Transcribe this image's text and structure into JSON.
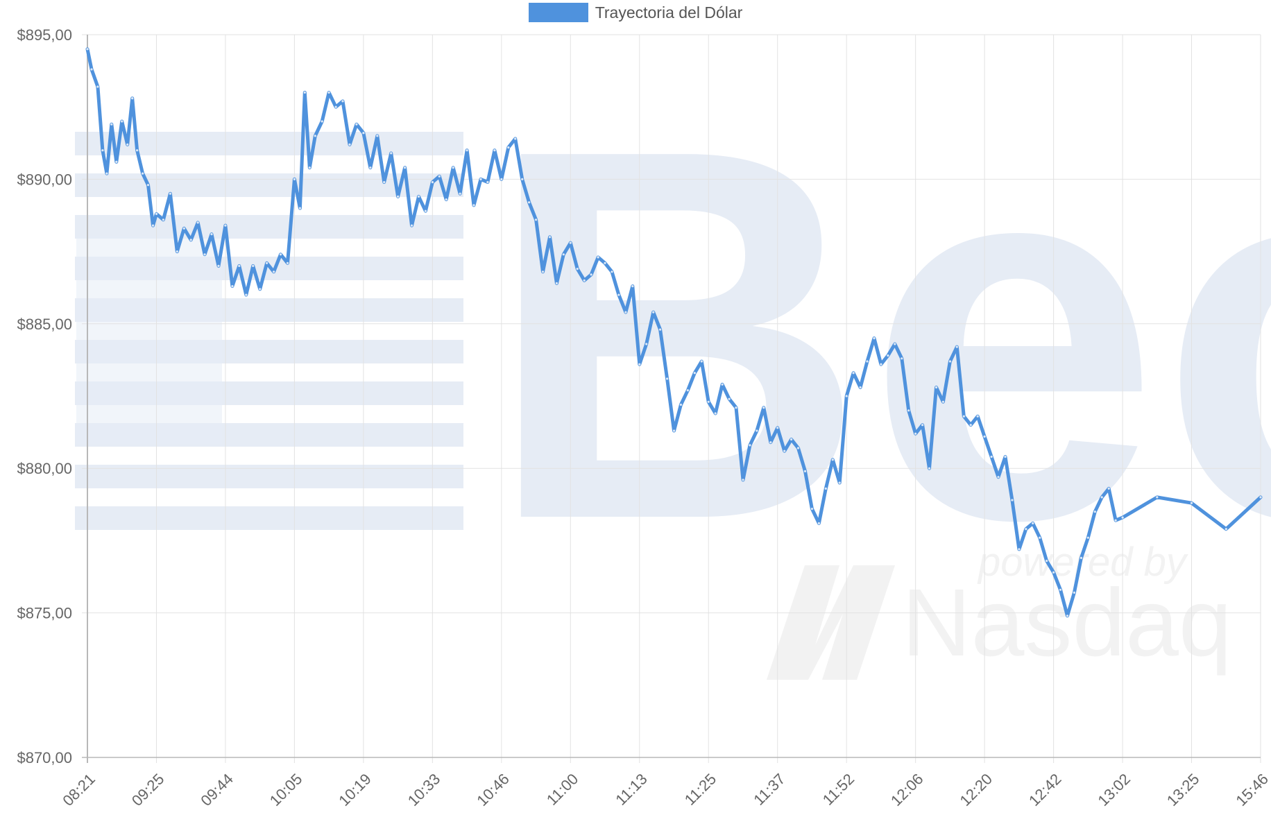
{
  "colors": {
    "series": "#4f92dd",
    "grid": "#e2e2e2",
    "axis": "#b8b8b8",
    "tick_text": "#666666",
    "watermark": "#e6ecf5",
    "watermark_text": "#f2f2f2"
  },
  "watermark": {
    "brand": "Bec",
    "tagline": "powered by",
    "partner": "Nasdaq"
  },
  "chart_data": {
    "type": "line",
    "title": "",
    "xlabel": "",
    "ylabel": "",
    "legend_position": "top-center",
    "grid": true,
    "categories": [
      "08:21",
      "09:25",
      "09:44",
      "10:05",
      "10:19",
      "10:33",
      "10:46",
      "11:00",
      "11:13",
      "11:25",
      "11:37",
      "11:52",
      "12:06",
      "12:20",
      "12:42",
      "13:02",
      "13:25",
      "15:46"
    ],
    "y_ticks": [
      "$870,00",
      "$875,00",
      "$880,00",
      "$885,00",
      "$890,00",
      "$895,00"
    ],
    "ylim": [
      870,
      895
    ],
    "series": [
      {
        "name": "Trayectoria del Dólar",
        "points": [
          [
            0,
            894.5
          ],
          [
            0.06,
            893.8
          ],
          [
            0.15,
            893.2
          ],
          [
            0.22,
            891.0
          ],
          [
            0.28,
            890.2
          ],
          [
            0.35,
            891.9
          ],
          [
            0.42,
            890.6
          ],
          [
            0.5,
            892.0
          ],
          [
            0.58,
            891.2
          ],
          [
            0.65,
            892.8
          ],
          [
            0.72,
            891.0
          ],
          [
            0.8,
            890.2
          ],
          [
            0.88,
            889.8
          ],
          [
            0.95,
            888.4
          ],
          [
            1.0,
            888.8
          ],
          [
            1.1,
            888.6
          ],
          [
            1.2,
            889.5
          ],
          [
            1.3,
            887.5
          ],
          [
            1.4,
            888.3
          ],
          [
            1.5,
            887.9
          ],
          [
            1.6,
            888.5
          ],
          [
            1.7,
            887.4
          ],
          [
            1.8,
            888.1
          ],
          [
            1.9,
            887.0
          ],
          [
            2.0,
            888.4
          ],
          [
            2.1,
            886.3
          ],
          [
            2.2,
            887.0
          ],
          [
            2.3,
            886.0
          ],
          [
            2.4,
            887.0
          ],
          [
            2.5,
            886.2
          ],
          [
            2.6,
            887.1
          ],
          [
            2.7,
            886.8
          ],
          [
            2.8,
            887.4
          ],
          [
            2.9,
            887.1
          ],
          [
            3.0,
            890.0
          ],
          [
            3.08,
            889.0
          ],
          [
            3.15,
            893.0
          ],
          [
            3.22,
            890.4
          ],
          [
            3.3,
            891.5
          ],
          [
            3.4,
            892.0
          ],
          [
            3.5,
            893.0
          ],
          [
            3.6,
            892.5
          ],
          [
            3.7,
            892.7
          ],
          [
            3.8,
            891.2
          ],
          [
            3.9,
            891.9
          ],
          [
            4.0,
            891.6
          ],
          [
            4.1,
            890.4
          ],
          [
            4.2,
            891.5
          ],
          [
            4.3,
            889.9
          ],
          [
            4.4,
            890.9
          ],
          [
            4.5,
            889.4
          ],
          [
            4.6,
            890.4
          ],
          [
            4.7,
            888.4
          ],
          [
            4.8,
            889.4
          ],
          [
            4.9,
            888.9
          ],
          [
            5.0,
            889.9
          ],
          [
            5.1,
            890.1
          ],
          [
            5.2,
            889.3
          ],
          [
            5.3,
            890.4
          ],
          [
            5.4,
            889.5
          ],
          [
            5.5,
            891.0
          ],
          [
            5.6,
            889.1
          ],
          [
            5.7,
            890.0
          ],
          [
            5.8,
            889.9
          ],
          [
            5.9,
            891.0
          ],
          [
            6.0,
            890.0
          ],
          [
            6.1,
            891.1
          ],
          [
            6.2,
            891.4
          ],
          [
            6.3,
            890.0
          ],
          [
            6.4,
            889.2
          ],
          [
            6.5,
            888.6
          ],
          [
            6.6,
            886.8
          ],
          [
            6.7,
            888.0
          ],
          [
            6.8,
            886.4
          ],
          [
            6.9,
            887.4
          ],
          [
            7.0,
            887.8
          ],
          [
            7.1,
            886.9
          ],
          [
            7.2,
            886.5
          ],
          [
            7.3,
            886.7
          ],
          [
            7.4,
            887.3
          ],
          [
            7.5,
            887.1
          ],
          [
            7.6,
            886.8
          ],
          [
            7.7,
            886.0
          ],
          [
            7.8,
            885.4
          ],
          [
            7.9,
            886.3
          ],
          [
            8.0,
            883.6
          ],
          [
            8.1,
            884.3
          ],
          [
            8.2,
            885.4
          ],
          [
            8.3,
            884.8
          ],
          [
            8.4,
            883.1
          ],
          [
            8.5,
            881.3
          ],
          [
            8.6,
            882.2
          ],
          [
            8.7,
            882.7
          ],
          [
            8.8,
            883.3
          ],
          [
            8.9,
            883.7
          ],
          [
            9.0,
            882.3
          ],
          [
            9.1,
            881.9
          ],
          [
            9.2,
            882.9
          ],
          [
            9.3,
            882.4
          ],
          [
            9.4,
            882.1
          ],
          [
            9.5,
            879.6
          ],
          [
            9.6,
            880.8
          ],
          [
            9.7,
            881.3
          ],
          [
            9.8,
            882.1
          ],
          [
            9.9,
            880.9
          ],
          [
            10.0,
            881.4
          ],
          [
            10.1,
            880.6
          ],
          [
            10.2,
            881.0
          ],
          [
            10.3,
            880.7
          ],
          [
            10.4,
            879.9
          ],
          [
            10.5,
            878.6
          ],
          [
            10.6,
            878.1
          ],
          [
            10.7,
            879.3
          ],
          [
            10.8,
            880.3
          ],
          [
            10.9,
            879.5
          ],
          [
            11.0,
            882.5
          ],
          [
            11.1,
            883.3
          ],
          [
            11.2,
            882.8
          ],
          [
            11.3,
            883.7
          ],
          [
            11.4,
            884.5
          ],
          [
            11.5,
            883.6
          ],
          [
            11.6,
            883.9
          ],
          [
            11.7,
            884.3
          ],
          [
            11.8,
            883.8
          ],
          [
            11.9,
            882.0
          ],
          [
            12.0,
            881.2
          ],
          [
            12.1,
            881.5
          ],
          [
            12.2,
            880.0
          ],
          [
            12.3,
            882.8
          ],
          [
            12.4,
            882.3
          ],
          [
            12.5,
            883.7
          ],
          [
            12.6,
            884.2
          ],
          [
            12.7,
            881.8
          ],
          [
            12.8,
            881.5
          ],
          [
            12.9,
            881.8
          ],
          [
            13.0,
            881.1
          ],
          [
            13.1,
            880.4
          ],
          [
            13.2,
            879.7
          ],
          [
            13.3,
            880.4
          ],
          [
            13.4,
            878.9
          ],
          [
            13.5,
            877.2
          ],
          [
            13.6,
            877.9
          ],
          [
            13.7,
            878.1
          ],
          [
            13.8,
            877.6
          ],
          [
            13.9,
            876.8
          ],
          [
            14.0,
            876.4
          ],
          [
            14.1,
            875.8
          ],
          [
            14.2,
            874.9
          ],
          [
            14.3,
            875.7
          ],
          [
            14.4,
            876.9
          ],
          [
            14.5,
            877.6
          ],
          [
            14.6,
            878.5
          ],
          [
            14.7,
            879.0
          ],
          [
            14.8,
            879.3
          ],
          [
            14.9,
            878.2
          ],
          [
            15.0,
            878.3
          ],
          [
            15.5,
            879.0
          ],
          [
            16.0,
            878.8
          ],
          [
            16.5,
            877.9
          ],
          [
            17.0,
            879.0
          ]
        ]
      }
    ]
  }
}
